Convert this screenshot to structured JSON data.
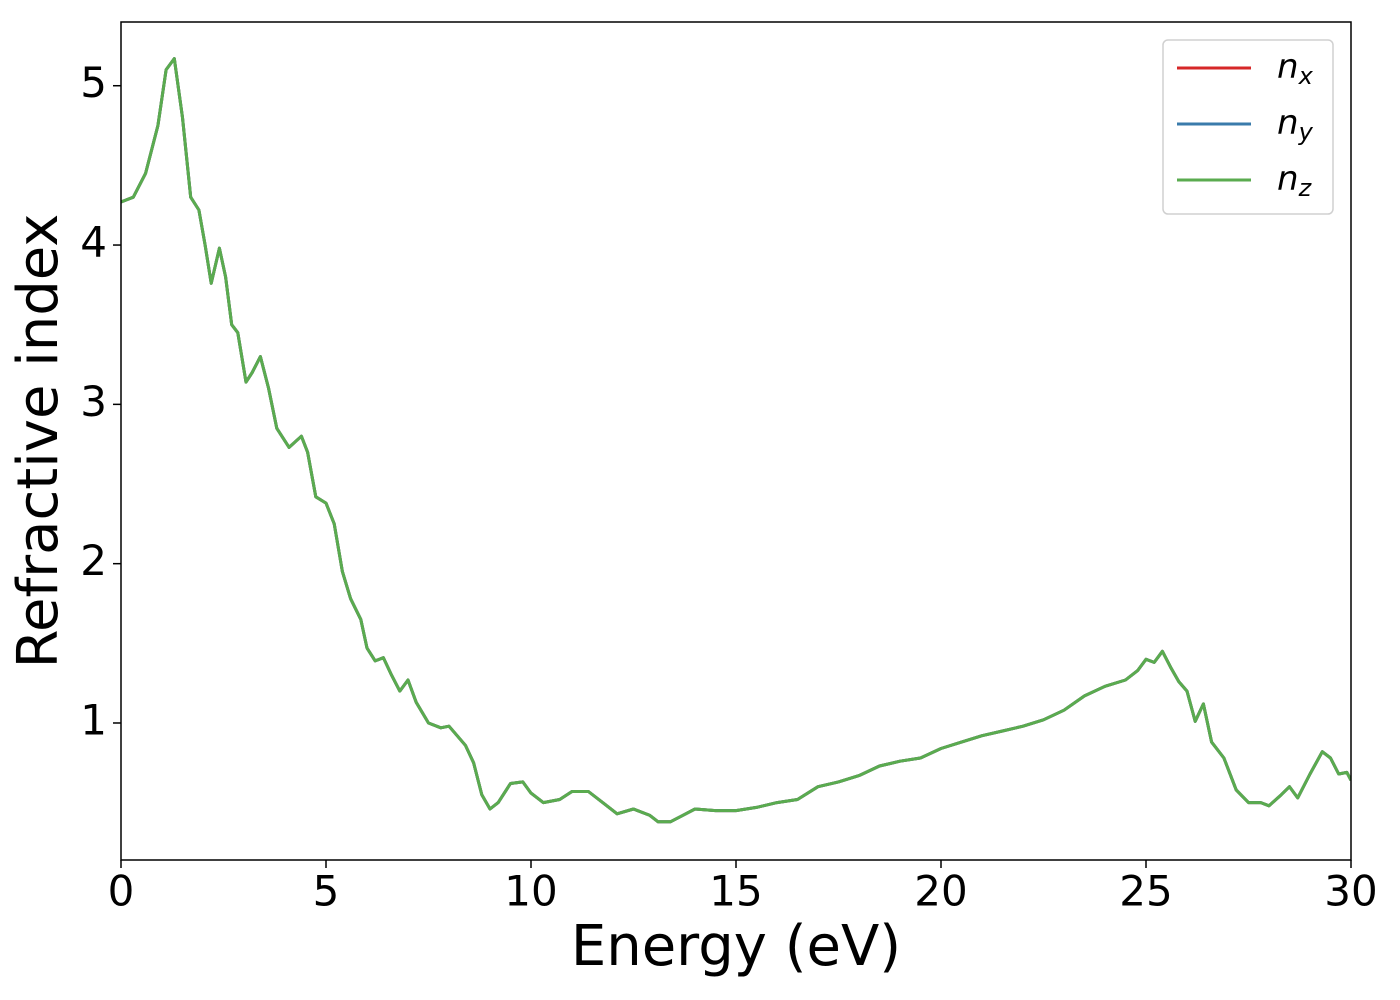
{
  "chart_data": {
    "type": "line",
    "xlabel": "Energy (eV)",
    "ylabel": "Refractive index",
    "x": [
      0,
      0.3,
      0.6,
      0.9,
      1.1,
      1.3,
      1.5,
      1.7,
      1.9,
      2.05,
      2.2,
      2.4,
      2.55,
      2.7,
      2.85,
      3.05,
      3.2,
      3.4,
      3.6,
      3.8,
      4.1,
      4.4,
      4.55,
      4.75,
      5.0,
      5.2,
      5.4,
      5.6,
      5.85,
      6.0,
      6.2,
      6.4,
      6.6,
      6.8,
      7.0,
      7.2,
      7.5,
      7.8,
      8.0,
      8.4,
      8.6,
      8.8,
      9.0,
      9.2,
      9.5,
      9.8,
      10.0,
      10.3,
      10.7,
      11.0,
      11.4,
      11.8,
      12.1,
      12.5,
      12.9,
      13.1,
      13.4,
      13.7,
      14.0,
      14.5,
      15.0,
      15.5,
      16.0,
      16.5,
      17.0,
      17.5,
      18.0,
      18.5,
      19.0,
      19.5,
      20.0,
      20.5,
      21.0,
      21.5,
      22.0,
      22.5,
      23.0,
      23.5,
      24.0,
      24.5,
      24.8,
      25.0,
      25.2,
      25.4,
      25.6,
      25.8,
      26.0,
      26.2,
      26.4,
      26.6,
      26.9,
      27.2,
      27.5,
      27.8,
      28.0,
      28.3,
      28.5,
      28.7,
      29.0,
      29.3,
      29.5,
      29.7,
      29.9,
      30.0
    ],
    "series": [
      {
        "name": "nx",
        "color": "#d62728",
        "values": [
          4.27,
          4.3,
          4.45,
          4.75,
          5.1,
          5.17,
          4.8,
          4.3,
          4.22,
          4.0,
          3.76,
          3.98,
          3.8,
          3.5,
          3.45,
          3.14,
          3.2,
          3.3,
          3.1,
          2.85,
          2.73,
          2.8,
          2.7,
          2.42,
          2.38,
          2.25,
          1.95,
          1.78,
          1.65,
          1.47,
          1.39,
          1.41,
          1.3,
          1.2,
          1.27,
          1.13,
          1.0,
          0.97,
          0.98,
          0.86,
          0.75,
          0.55,
          0.46,
          0.5,
          0.62,
          0.63,
          0.56,
          0.5,
          0.52,
          0.57,
          0.57,
          0.49,
          0.43,
          0.46,
          0.42,
          0.38,
          0.38,
          0.42,
          0.46,
          0.45,
          0.45,
          0.47,
          0.5,
          0.52,
          0.6,
          0.63,
          0.67,
          0.73,
          0.76,
          0.78,
          0.84,
          0.88,
          0.92,
          0.95,
          0.98,
          1.02,
          1.08,
          1.17,
          1.23,
          1.27,
          1.33,
          1.4,
          1.38,
          1.45,
          1.35,
          1.26,
          1.2,
          1.01,
          1.12,
          0.88,
          0.78,
          0.58,
          0.5,
          0.5,
          0.48,
          0.55,
          0.6,
          0.53,
          0.68,
          0.82,
          0.78,
          0.68,
          0.69,
          0.64
        ]
      },
      {
        "name": "ny",
        "color": "#3a7bab",
        "values": [
          4.27,
          4.3,
          4.45,
          4.75,
          5.1,
          5.17,
          4.8,
          4.3,
          4.22,
          4.0,
          3.76,
          3.98,
          3.8,
          3.5,
          3.45,
          3.14,
          3.2,
          3.3,
          3.1,
          2.85,
          2.73,
          2.8,
          2.7,
          2.42,
          2.38,
          2.25,
          1.95,
          1.78,
          1.65,
          1.47,
          1.39,
          1.41,
          1.3,
          1.2,
          1.27,
          1.13,
          1.0,
          0.97,
          0.98,
          0.86,
          0.75,
          0.55,
          0.46,
          0.5,
          0.62,
          0.63,
          0.56,
          0.5,
          0.52,
          0.57,
          0.57,
          0.49,
          0.43,
          0.46,
          0.42,
          0.38,
          0.38,
          0.42,
          0.46,
          0.45,
          0.45,
          0.47,
          0.5,
          0.52,
          0.6,
          0.63,
          0.67,
          0.73,
          0.76,
          0.78,
          0.84,
          0.88,
          0.92,
          0.95,
          0.98,
          1.02,
          1.08,
          1.17,
          1.23,
          1.27,
          1.33,
          1.4,
          1.38,
          1.45,
          1.35,
          1.26,
          1.2,
          1.01,
          1.12,
          0.88,
          0.78,
          0.58,
          0.5,
          0.5,
          0.48,
          0.55,
          0.6,
          0.53,
          0.68,
          0.82,
          0.78,
          0.68,
          0.69,
          0.64
        ]
      },
      {
        "name": "nz",
        "color": "#5aab4f",
        "values": [
          4.27,
          4.3,
          4.45,
          4.75,
          5.1,
          5.17,
          4.8,
          4.3,
          4.22,
          4.0,
          3.76,
          3.98,
          3.8,
          3.5,
          3.45,
          3.14,
          3.2,
          3.3,
          3.1,
          2.85,
          2.73,
          2.8,
          2.7,
          2.42,
          2.38,
          2.25,
          1.95,
          1.78,
          1.65,
          1.47,
          1.39,
          1.41,
          1.3,
          1.2,
          1.27,
          1.13,
          1.0,
          0.97,
          0.98,
          0.86,
          0.75,
          0.55,
          0.46,
          0.5,
          0.62,
          0.63,
          0.56,
          0.5,
          0.52,
          0.57,
          0.57,
          0.49,
          0.43,
          0.46,
          0.42,
          0.38,
          0.38,
          0.42,
          0.46,
          0.45,
          0.45,
          0.47,
          0.5,
          0.52,
          0.6,
          0.63,
          0.67,
          0.73,
          0.76,
          0.78,
          0.84,
          0.88,
          0.92,
          0.95,
          0.98,
          1.02,
          1.08,
          1.17,
          1.23,
          1.27,
          1.33,
          1.4,
          1.38,
          1.45,
          1.35,
          1.26,
          1.2,
          1.01,
          1.12,
          0.88,
          0.78,
          0.58,
          0.5,
          0.5,
          0.48,
          0.55,
          0.6,
          0.53,
          0.68,
          0.82,
          0.78,
          0.68,
          0.69,
          0.64
        ]
      }
    ],
    "xlim": [
      0,
      30
    ],
    "xticks": [
      0,
      5,
      10,
      15,
      20,
      25,
      30
    ],
    "ylim": [
      0.14,
      5.4
    ],
    "yticks": [
      1,
      2,
      3,
      4,
      5
    ],
    "grid": false,
    "legend": "upper right"
  }
}
